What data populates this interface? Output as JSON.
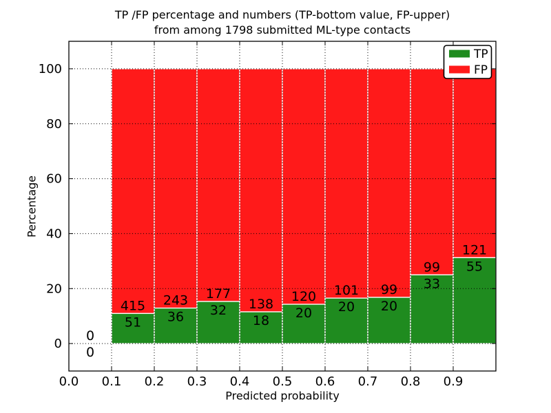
{
  "figure": {
    "title_line1": "TP /FP percentage and numbers (TP-bottom value, FP-upper)",
    "title_line2": "from among 1798 submitted ML-type contacts",
    "xlabel": "Predicted probability",
    "ylabel": "Percentage"
  },
  "chart_data": {
    "type": "bar",
    "subtype": "stacked-percentage-100",
    "title": "TP /FP percentage and numbers (TP-bottom value, FP-upper) from among 1798 submitted ML-type contacts",
    "xlabel": "Predicted probability",
    "ylabel": "Percentage",
    "xlim": [
      0.0,
      1.0
    ],
    "ylim": [
      -10,
      110
    ],
    "x_ticks": [
      "0.0",
      "0.1",
      "0.2",
      "0.3",
      "0.4",
      "0.5",
      "0.6",
      "0.7",
      "0.8",
      "0.9"
    ],
    "y_ticks": [
      0,
      20,
      40,
      60,
      80,
      100
    ],
    "grid": true,
    "grid_style": "dotted",
    "grid_above_bars": true,
    "legend_position": "upper right",
    "bin_edges": [
      0.0,
      0.1,
      0.2,
      0.3,
      0.4,
      0.5,
      0.6,
      0.7,
      0.8,
      0.9,
      1.0
    ],
    "series": [
      {
        "name": "TP",
        "color": "#1f8b1f",
        "counts": [
          0,
          51,
          36,
          32,
          18,
          20,
          20,
          20,
          33,
          55
        ]
      },
      {
        "name": "FP",
        "color": "#ff1a1a",
        "counts": [
          0,
          415,
          243,
          177,
          138,
          120,
          101,
          99,
          99,
          121
        ]
      }
    ],
    "bar_height_rule": "green TP segment height = TP/(TP+FP)*100, red FP segment stacked on top up to 100%",
    "annotation_rule": "FP count printed just above the TP/FP boundary, TP count just below it; empty first bin shows 0 over 0 at the baseline",
    "bar_edge_color": "#ffffff",
    "axis_color": "#000000"
  }
}
